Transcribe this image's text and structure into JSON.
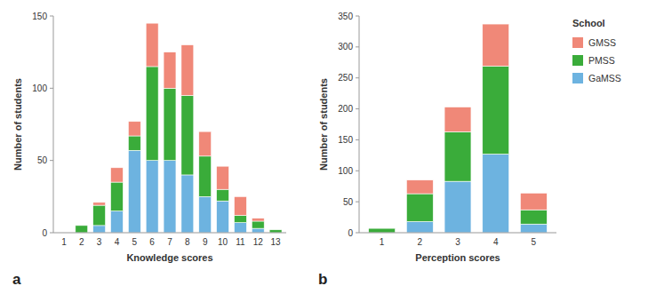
{
  "chart_data": [
    {
      "type": "bar",
      "stacked": true,
      "grid": false,
      "categories": [
        "1",
        "2",
        "3",
        "4",
        "5",
        "6",
        "7",
        "8",
        "9",
        "10",
        "11",
        "12",
        "13"
      ],
      "series": [
        {
          "name": "GaMSS",
          "color": "#6db3e0",
          "values": [
            0,
            0,
            5,
            15,
            57,
            50,
            50,
            40,
            25,
            22,
            7,
            3,
            0
          ]
        },
        {
          "name": "PMSS",
          "color": "#3aac3a",
          "values": [
            0,
            5,
            14,
            20,
            10,
            65,
            50,
            55,
            28,
            8,
            5,
            5,
            2
          ]
        },
        {
          "name": "GMSS",
          "color": "#f08878",
          "values": [
            0,
            0,
            2,
            10,
            10,
            30,
            25,
            35,
            17,
            16,
            13,
            2,
            0
          ]
        }
      ],
      "ylim": [
        0,
        150
      ],
      "yticks": [
        0,
        50,
        100,
        150
      ],
      "xlabel": "Knowledge scores",
      "ylabel": "Number of students",
      "annotations": [
        "a"
      ]
    },
    {
      "type": "bar",
      "stacked": true,
      "grid": false,
      "categories": [
        "1",
        "2",
        "3",
        "4",
        "5"
      ],
      "series": [
        {
          "name": "GaMSS",
          "color": "#6db3e0",
          "values": [
            0,
            18,
            83,
            127,
            14
          ]
        },
        {
          "name": "PMSS",
          "color": "#3aac3a",
          "values": [
            7,
            45,
            80,
            142,
            23
          ]
        },
        {
          "name": "GMSS",
          "color": "#f08878",
          "values": [
            0,
            22,
            40,
            68,
            27
          ]
        }
      ],
      "ylim": [
        0,
        350
      ],
      "yticks": [
        0,
        50,
        100,
        150,
        200,
        250,
        300,
        350
      ],
      "xlabel": "Perception scores",
      "ylabel": "Number of students",
      "legend": "right",
      "legend_title": "School",
      "annotations": [
        "b"
      ]
    }
  ]
}
